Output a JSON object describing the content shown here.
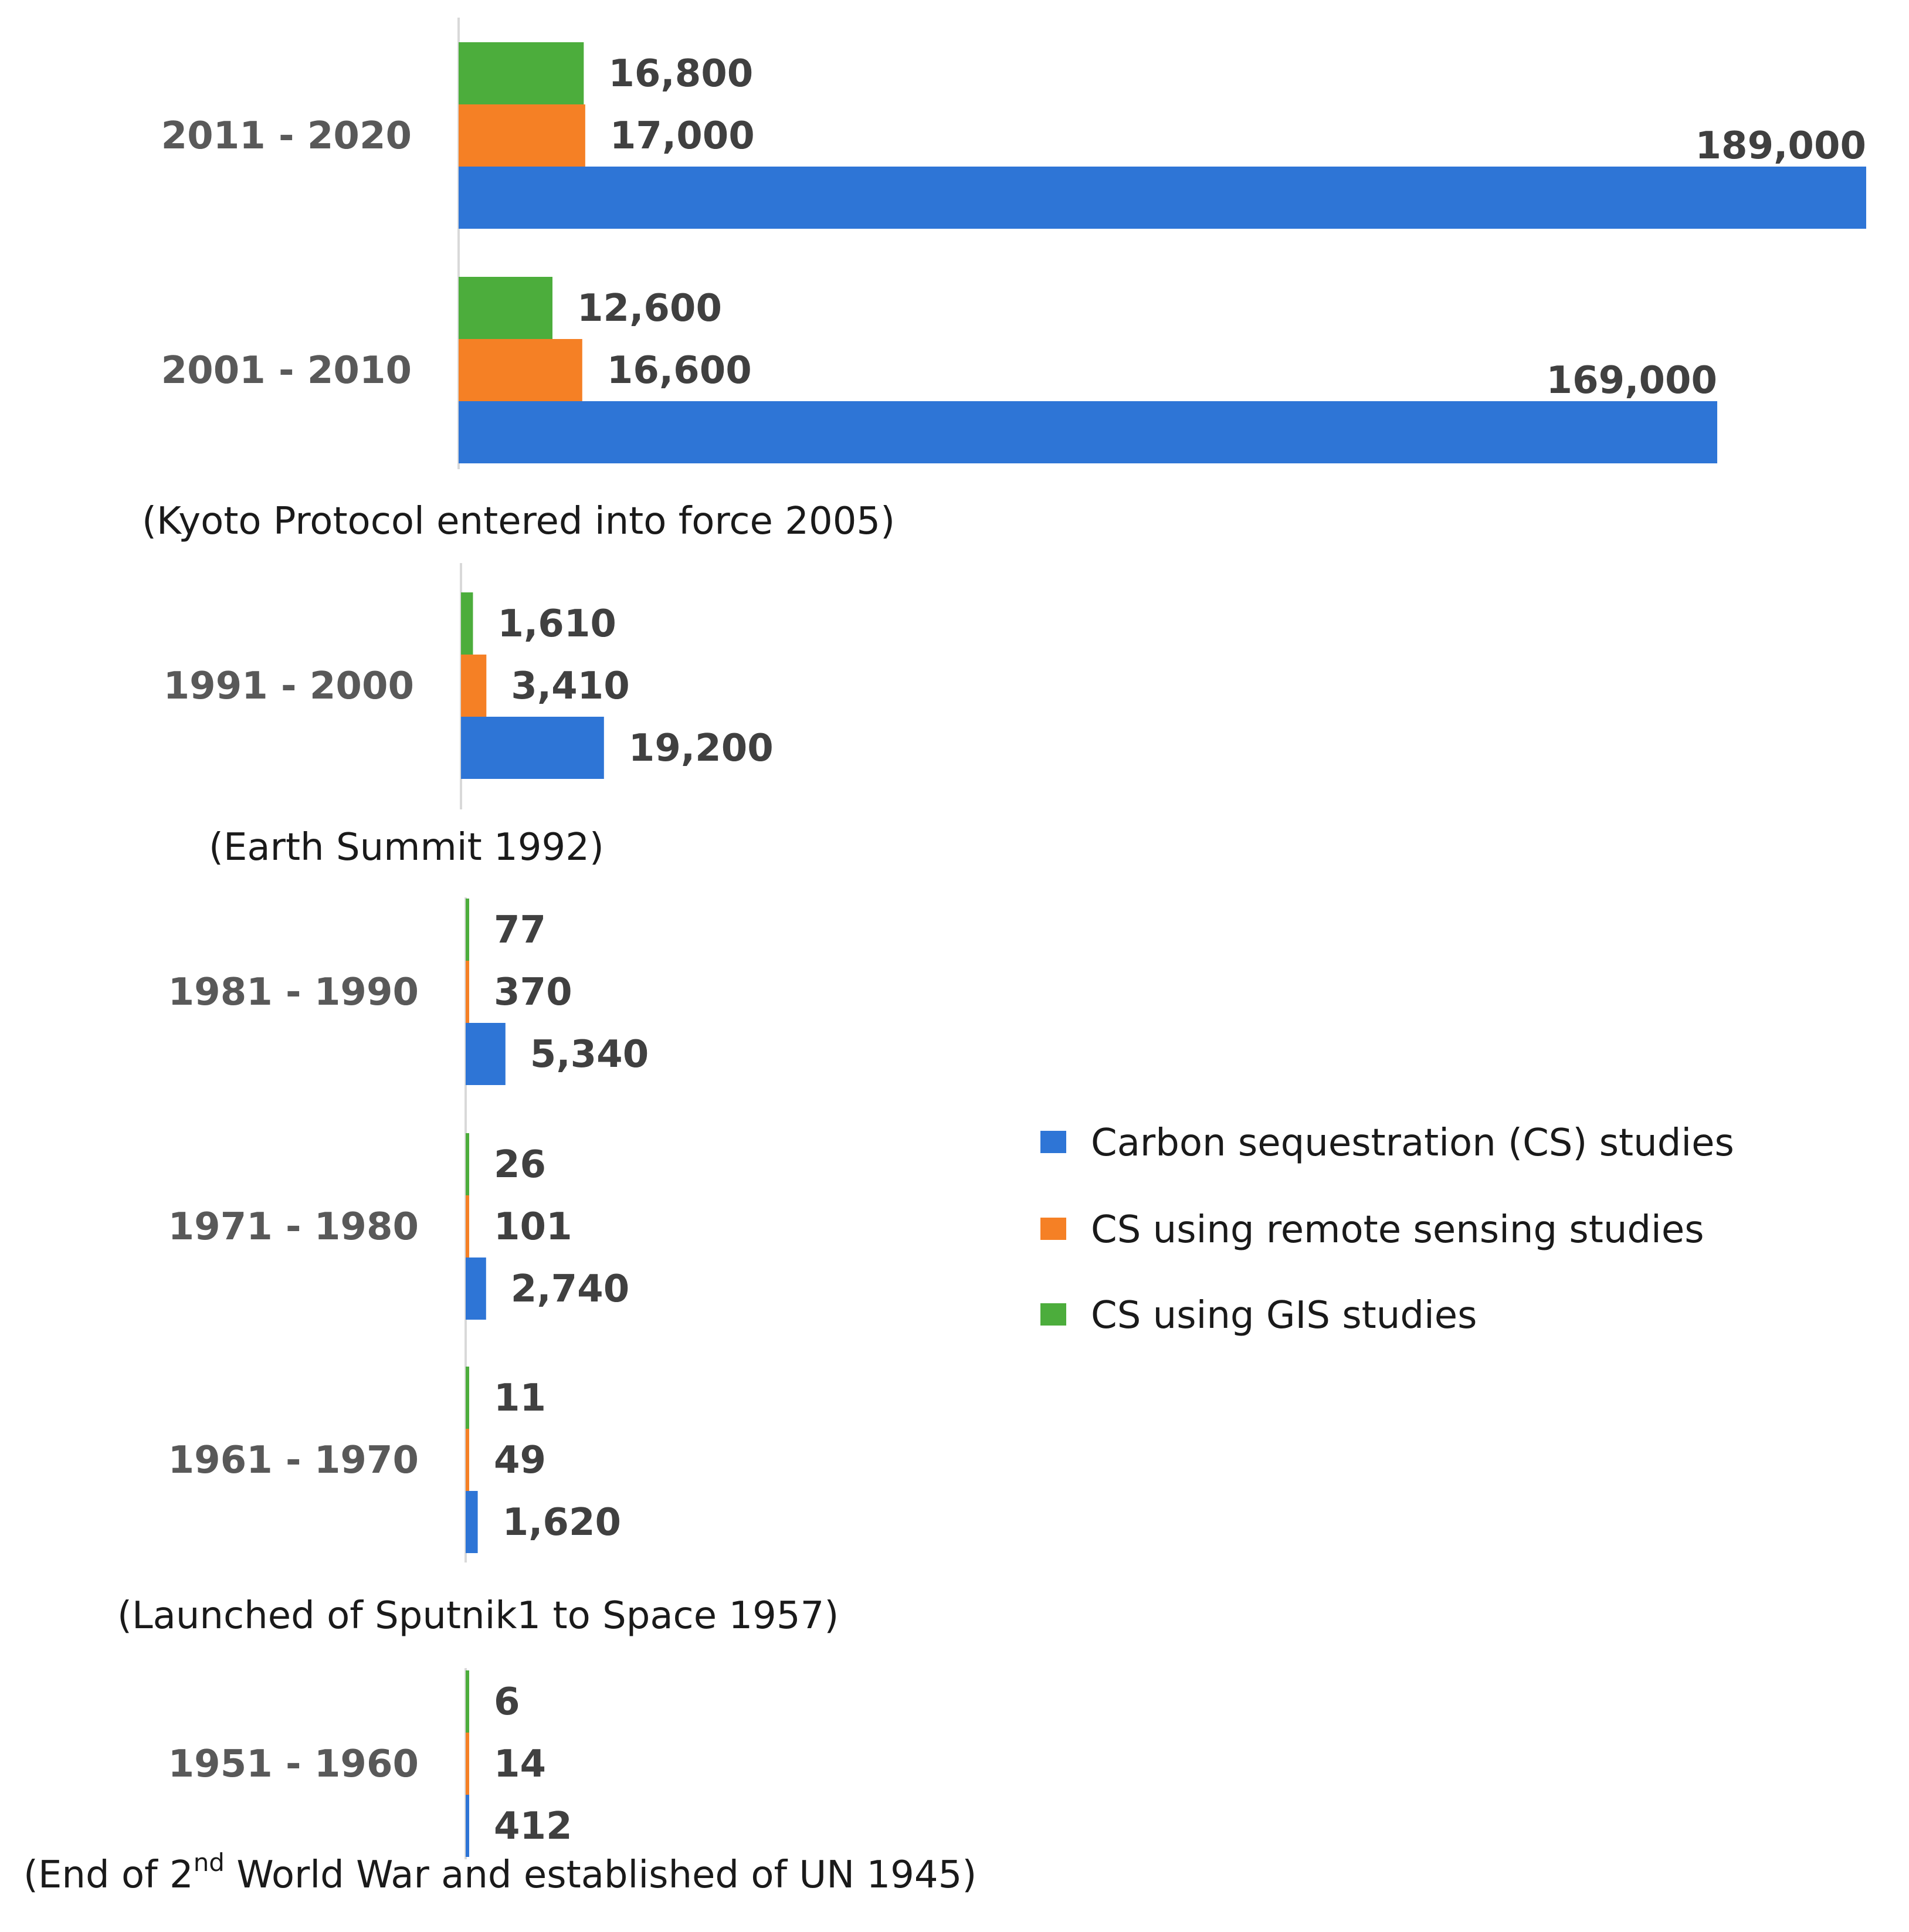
{
  "chart_data": {
    "type": "bar",
    "orientation": "horizontal",
    "groups": [
      {
        "category": "2011 - 2020",
        "values": {
          "gis": 16800,
          "rs": 17000,
          "cs": 189000
        },
        "labels": {
          "gis": "16,800",
          "rs": "17,000",
          "cs": "189,000"
        }
      },
      {
        "category": "2001 - 2010",
        "values": {
          "gis": 12600,
          "rs": 16600,
          "cs": 169000
        },
        "labels": {
          "gis": "12,600",
          "rs": "16,600",
          "cs": "169,000"
        }
      },
      {
        "category": "1991 - 2000",
        "values": {
          "gis": 1610,
          "rs": 3410,
          "cs": 19200
        },
        "labels": {
          "gis": "1,610",
          "rs": "3,410",
          "cs": "19,200"
        }
      },
      {
        "category": "1981 - 1990",
        "values": {
          "gis": 77,
          "rs": 370,
          "cs": 5340
        },
        "labels": {
          "gis": "77",
          "rs": "370",
          "cs": "5,340"
        }
      },
      {
        "category": "1971 - 1980",
        "values": {
          "gis": 26,
          "rs": 101,
          "cs": 2740
        },
        "labels": {
          "gis": "26",
          "rs": "101",
          "cs": "2,740"
        }
      },
      {
        "category": "1961 - 1970",
        "values": {
          "gis": 11,
          "rs": 49,
          "cs": 1620
        },
        "labels": {
          "gis": "11",
          "rs": "49",
          "cs": "1,620"
        }
      },
      {
        "category": "1951 - 1960",
        "values": {
          "gis": 6,
          "rs": 14,
          "cs": 412
        },
        "labels": {
          "gis": "6",
          "rs": "14",
          "cs": "412"
        }
      }
    ],
    "series": [
      {
        "key": "cs",
        "name": "Carbon sequestration (CS) studies",
        "color": "#2e75d6"
      },
      {
        "key": "rs",
        "name": "CS using remote sensing studies",
        "color": "#f58025"
      },
      {
        "key": "gis",
        "name": "CS using GIS studies",
        "color": "#4cad3c"
      }
    ],
    "annotations": {
      "kyoto": "(Kyoto Protocol entered into force 2005)",
      "earth_summit": "(Earth Summit 1992)",
      "sputnik": "(Launched of Sputnik1 to Space 1957)",
      "ww2_prefix": "(End of 2",
      "ww2_superscript": "nd",
      "ww2_suffix": " World War and established of UN 1945)"
    },
    "xlim": [
      0,
      189000
    ],
    "legend_position": "right"
  }
}
